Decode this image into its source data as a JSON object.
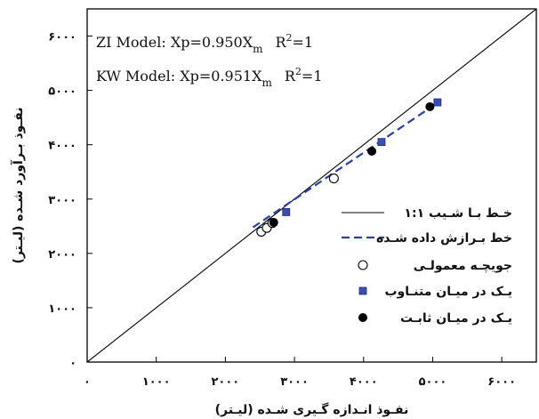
{
  "chart_data": {
    "type": "scatter",
    "xlabel": "نفـوذ انـدازه گـیری شـده (لیـتر)",
    "ylabel": "نفـوذ بـرآورد شـده (لیـتر)",
    "xlim": [
      0,
      6500
    ],
    "ylim": [
      0,
      6500
    ],
    "x_ticks": [
      0,
      1000,
      2000,
      3000,
      4000,
      5000,
      6000
    ],
    "y_ticks": [
      0,
      1000,
      2000,
      3000,
      4000,
      5000,
      6000
    ],
    "x_tick_labels": [
      "۰",
      "۱۰۰۰",
      "۲۰۰۰",
      "۳۰۰۰",
      "۴۰۰۰",
      "۵۰۰۰",
      "۶۰۰۰"
    ],
    "y_tick_labels": [
      "۰",
      "۱۰۰۰",
      "۲۰۰۰",
      "۳۰۰۰",
      "۴۰۰۰",
      "۵۰۰۰",
      "۶۰۰۰"
    ],
    "grid": false,
    "legend_position": "right",
    "annotations": [
      {
        "model": "ZI Model: Xp=0.950X",
        "sub": "m",
        "r2": "R",
        "sup": "2",
        "eq": "=1"
      },
      {
        "model": "KW Model: Xp=0.951X",
        "sub": "m",
        "r2": "R",
        "sup": "2",
        "eq": "=1"
      }
    ],
    "series": [
      {
        "name": "خـط بـا شـیب ۱:۱",
        "kind": "line",
        "style": "solid",
        "color": "#000000",
        "x": [
          0,
          6500
        ],
        "y": [
          0,
          6500
        ]
      },
      {
        "name": "خط بـرازش داده شـده",
        "kind": "line",
        "style": "dashed",
        "color": "#2a3f9e",
        "x": [
          2400,
          5080
        ],
        "y": [
          2480,
          4780
        ]
      },
      {
        "name": "جویچـه معمولـی",
        "kind": "marker",
        "marker": "circle-open",
        "color": "#000000",
        "x": [
          2520,
          2600,
          2680,
          3570
        ],
        "y": [
          2400,
          2470,
          2560,
          3380
        ]
      },
      {
        "name": "یـک در میـان متنـاوب",
        "kind": "marker",
        "marker": "square",
        "color": "#3a4fb0",
        "x": [
          2880,
          4260,
          5070
        ],
        "y": [
          2760,
          4050,
          4780
        ]
      },
      {
        "name": "یـک در میـان ثابـت",
        "kind": "marker",
        "marker": "circle-filled",
        "color": "#000000",
        "x": [
          2700,
          4120,
          4960
        ],
        "y": [
          2570,
          3880,
          4700
        ]
      }
    ]
  }
}
